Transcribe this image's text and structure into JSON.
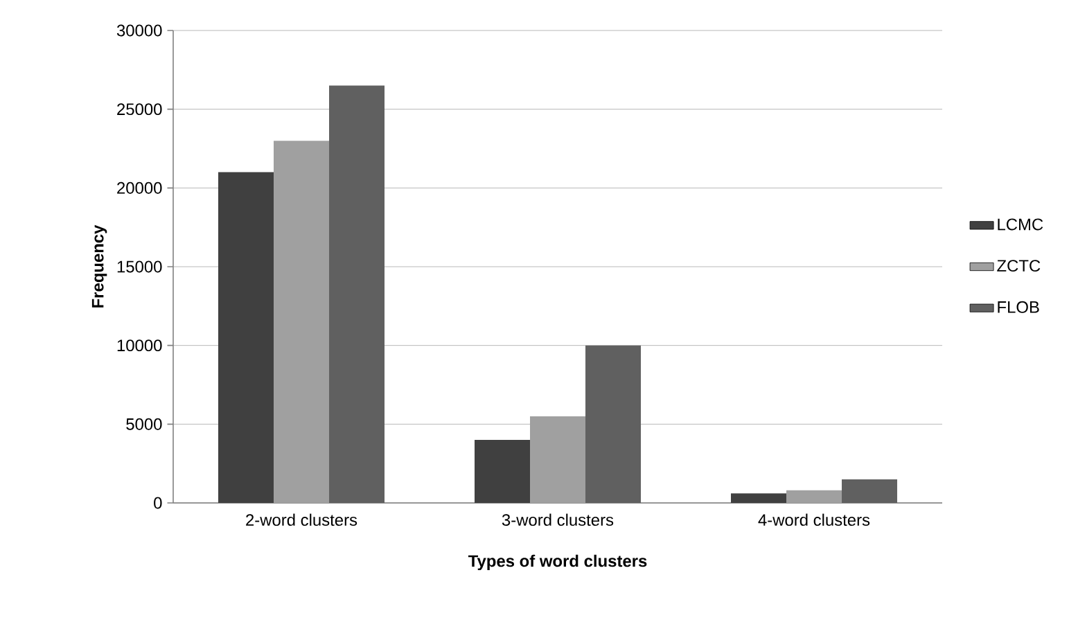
{
  "chart_data": {
    "type": "bar",
    "xlabel": "Types of word clusters",
    "ylabel": "Frequency",
    "categories": [
      "2-word clusters",
      "3-word clusters",
      "4-word clusters"
    ],
    "series": [
      {
        "name": "LCMC",
        "color": "#404040",
        "values": [
          21000,
          4000,
          600
        ]
      },
      {
        "name": "ZCTC",
        "color": "#a0a0a0",
        "values": [
          23000,
          5500,
          800
        ]
      },
      {
        "name": "FLOB",
        "color": "#606060",
        "values": [
          26500,
          10000,
          1500
        ]
      }
    ],
    "ylim": [
      0,
      30000
    ],
    "yticks": [
      0,
      5000,
      10000,
      15000,
      20000,
      25000,
      30000
    ],
    "grid": "y",
    "legend": "right"
  }
}
